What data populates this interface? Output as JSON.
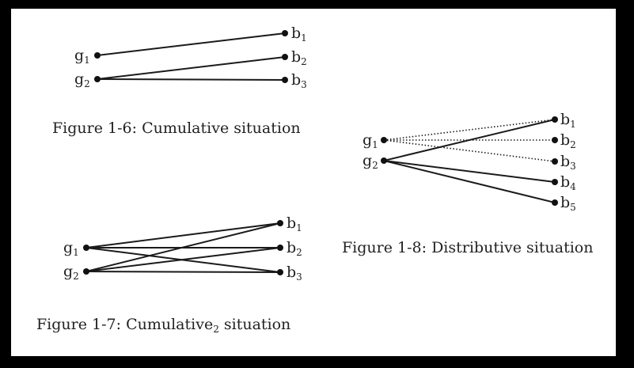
{
  "colors": {
    "background": "#000000",
    "panel": "#ffffff",
    "ink": "#1a1a1a"
  },
  "figures": [
    {
      "id": "fig-1-6",
      "caption": "Figure 1-6: Cumulative situation",
      "left_nodes": [
        {
          "base": "g",
          "sub": "1"
        },
        {
          "base": "g",
          "sub": "2"
        }
      ],
      "right_nodes": [
        {
          "base": "b",
          "sub": "1"
        },
        {
          "base": "b",
          "sub": "2"
        },
        {
          "base": "b",
          "sub": "3"
        }
      ],
      "edges": [
        {
          "from": "g1",
          "to": "b1",
          "style": "solid"
        },
        {
          "from": "g2",
          "to": "b2",
          "style": "solid"
        },
        {
          "from": "g2",
          "to": "b3",
          "style": "solid"
        }
      ]
    },
    {
      "id": "fig-1-7",
      "caption": "Figure 1-7: Cumulative",
      "caption_sub": "2",
      "caption_tail": " situation",
      "left_nodes": [
        {
          "base": "g",
          "sub": "1"
        },
        {
          "base": "g",
          "sub": "2"
        }
      ],
      "right_nodes": [
        {
          "base": "b",
          "sub": "1"
        },
        {
          "base": "b",
          "sub": "2"
        },
        {
          "base": "b",
          "sub": "3"
        }
      ],
      "edges": [
        {
          "from": "g1",
          "to": "b1",
          "style": "solid"
        },
        {
          "from": "g1",
          "to": "b2",
          "style": "solid"
        },
        {
          "from": "g1",
          "to": "b3",
          "style": "solid"
        },
        {
          "from": "g2",
          "to": "b1",
          "style": "solid"
        },
        {
          "from": "g2",
          "to": "b2",
          "style": "solid"
        },
        {
          "from": "g2",
          "to": "b3",
          "style": "solid"
        }
      ]
    },
    {
      "id": "fig-1-8",
      "caption": "Figure 1-8: Distributive situation",
      "left_nodes": [
        {
          "base": "g",
          "sub": "1"
        },
        {
          "base": "g",
          "sub": "2"
        }
      ],
      "right_nodes": [
        {
          "base": "b",
          "sub": "1"
        },
        {
          "base": "b",
          "sub": "2"
        },
        {
          "base": "b",
          "sub": "3"
        },
        {
          "base": "b",
          "sub": "4"
        },
        {
          "base": "b",
          "sub": "5"
        }
      ],
      "edges": [
        {
          "from": "g1",
          "to": "b1",
          "style": "dotted"
        },
        {
          "from": "g1",
          "to": "b2",
          "style": "dotted"
        },
        {
          "from": "g1",
          "to": "b3",
          "style": "dotted"
        },
        {
          "from": "g2",
          "to": "b1",
          "style": "solid"
        },
        {
          "from": "g2",
          "to": "b4",
          "style": "solid"
        },
        {
          "from": "g2",
          "to": "b5",
          "style": "solid"
        }
      ]
    }
  ]
}
